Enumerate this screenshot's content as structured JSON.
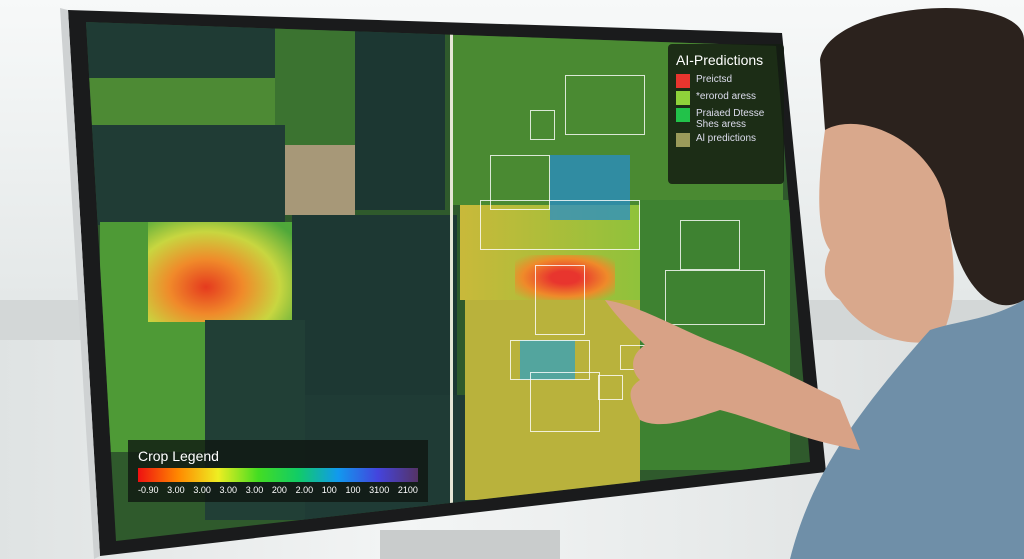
{
  "ai_legend": {
    "title": "AI-Predictions",
    "items": [
      {
        "label": "Preictsd",
        "color": "#e8352e"
      },
      {
        "label": "*erorod aress",
        "color": "#8fd23a"
      },
      {
        "label": "Praiaed Dtesse Shes aress",
        "color": "#22c24a"
      },
      {
        "label": "Al predictions",
        "color": "#9a9a5a"
      }
    ]
  },
  "crop_legend": {
    "title": "Crop Legend",
    "ticks": [
      "-0.90",
      "3.00",
      "3.00",
      "3.00",
      "3.00",
      "200",
      "2.00",
      "100",
      "100",
      "3100",
      "2100"
    ]
  },
  "colors": {
    "field_dark": "#1f3b34",
    "field_green": "#3f7a2e",
    "stress_red": "#e8352e",
    "shirt": "#6f8fa8"
  }
}
